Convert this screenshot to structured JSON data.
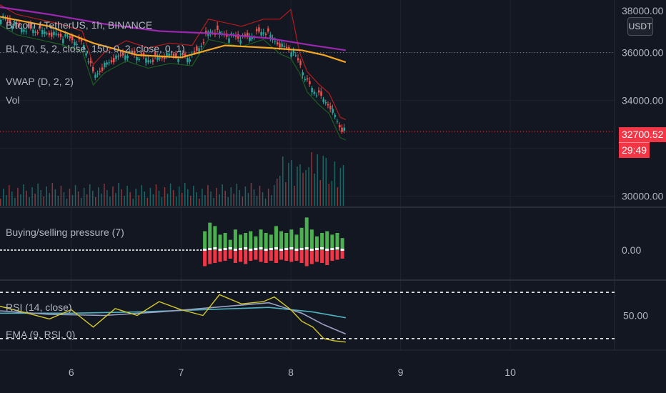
{
  "legend": {
    "symbol": "Bitcoin / TetherUS, 1h, BINANCE",
    "bl": "BL (70, 5, 2, close, 150, 0, 2, close, 0, 1)",
    "vwap": "VWAP (D, 2, 2)",
    "vol": "Vol",
    "pressure": "Buying/selling pressure (7)",
    "rsi": "RSI (14, close)",
    "ema": "EMA (9, RSI, 0)"
  },
  "price_axis": {
    "labels": [
      "36000.00",
      "34000.00",
      "30000.00"
    ],
    "pressure_label": "0.00",
    "rsi_label": "50.00",
    "top_partial": "38000.00",
    "currency_button": "USDT"
  },
  "last_price": {
    "price": "32700.52",
    "countdown": "29:49"
  },
  "time_axis": {
    "labels": [
      "6",
      "7",
      "8",
      "9",
      "10"
    ]
  },
  "colors": {
    "background": "#131722",
    "up": "#26a69a",
    "down": "#ef5350",
    "pressure_buy": "#4caf50",
    "pressure_sell": "#f23645",
    "bands": "#b71c1c",
    "band_low": "#1b5e20",
    "ma_purple": "#9c27b0",
    "ma_orange": "#f4a623",
    "rsi_yellow": "#d4c92b",
    "ema_blue": "#4fb3bf",
    "price_tag": "#f23645"
  },
  "chart_data": {
    "type": "candlestick",
    "x_range": [
      5.35,
      10.95
    ],
    "x_ticks": [
      6,
      7,
      8,
      9,
      10
    ],
    "price_range": [
      29600,
      38200
    ],
    "close_series": {
      "x": [
        5.35,
        5.5,
        5.7,
        5.9,
        6.1,
        6.2,
        6.3,
        6.5,
        6.7,
        6.9,
        7.1,
        7.25,
        7.35,
        7.55,
        7.75,
        7.9,
        8.0,
        8.08,
        8.15,
        8.25,
        8.35,
        8.45,
        8.5
      ],
      "y": [
        37500,
        37100,
        36900,
        36700,
        36400,
        35000,
        35500,
        36000,
        35700,
        35900,
        35800,
        36900,
        36800,
        36600,
        36900,
        36300,
        36100,
        35500,
        34700,
        34200,
        33800,
        32800,
        32700
      ]
    },
    "ma_purple": {
      "x": [
        5.35,
        5.8,
        6.3,
        6.8,
        7.3,
        7.8,
        8.2,
        8.5
      ],
      "y": [
        37900,
        37600,
        37200,
        36900,
        36800,
        36600,
        36300,
        36100
      ]
    },
    "ma_orange": {
      "x": [
        5.35,
        5.8,
        6.2,
        6.6,
        7.0,
        7.4,
        7.8,
        8.1,
        8.3,
        8.5
      ],
      "y": [
        37500,
        37100,
        36400,
        35900,
        35800,
        36300,
        36200,
        36100,
        35900,
        35600
      ]
    },
    "pressure": {
      "x_range": [
        7.2,
        8.5
      ],
      "buy": [
        0.55,
        0.8,
        0.7,
        0.45,
        0.5,
        0.3,
        0.6,
        0.45,
        0.5,
        0.55,
        0.4,
        0.6,
        0.5,
        0.45,
        0.7,
        0.55,
        0.5,
        0.6,
        0.45,
        0.65,
        0.95,
        0.6,
        0.4,
        0.5,
        0.55,
        0.45,
        0.5,
        0.35
      ],
      "sell": [
        0.75,
        0.65,
        0.6,
        0.55,
        0.5,
        0.4,
        0.6,
        0.55,
        0.65,
        0.5,
        0.45,
        0.55,
        0.6,
        0.5,
        0.6,
        0.45,
        0.5,
        0.55,
        0.5,
        0.6,
        0.75,
        0.65,
        0.55,
        0.6,
        0.7,
        0.5,
        0.45,
        0.4
      ]
    },
    "rsi": {
      "x": [
        5.35,
        5.6,
        5.8,
        6.0,
        6.2,
        6.4,
        6.6,
        6.8,
        7.0,
        7.2,
        7.35,
        7.55,
        7.75,
        7.85,
        8.0,
        8.1,
        8.2,
        8.3,
        8.4,
        8.5
      ],
      "y": [
        58,
        52,
        47,
        55,
        40,
        56,
        50,
        62,
        55,
        50,
        68,
        60,
        62,
        66,
        55,
        45,
        40,
        30,
        28,
        27
      ]
    },
    "ema": {
      "x": [
        5.35,
        5.8,
        6.3,
        6.8,
        7.3,
        7.8,
        8.1,
        8.3,
        8.5
      ],
      "y": [
        54,
        51,
        50,
        53,
        57,
        61,
        52,
        42,
        34
      ]
    },
    "ema_slow": {
      "x": [
        5.35,
        6.0,
        6.6,
        7.2,
        7.8,
        8.2,
        8.5
      ],
      "y": [
        52,
        52,
        53,
        55,
        57,
        53,
        48
      ]
    },
    "rsi_range": [
      20,
      80
    ]
  }
}
